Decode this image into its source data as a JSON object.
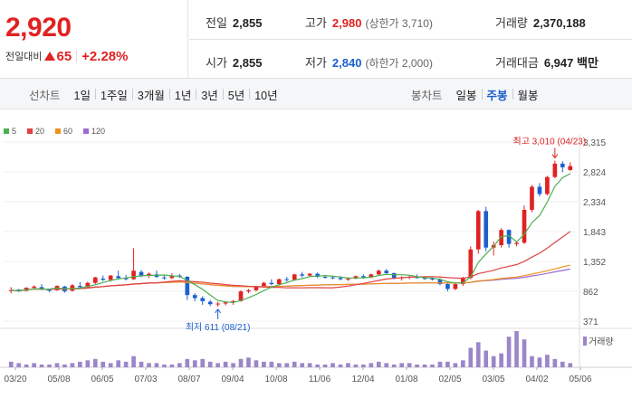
{
  "header": {
    "current_price": "2,920",
    "change_label": "전일대비",
    "change_amount": "65",
    "change_rate": "+2.28%"
  },
  "stats": {
    "prev_close": {
      "label": "전일",
      "value": "2,855"
    },
    "open": {
      "label": "시가",
      "value": "2,855"
    },
    "high": {
      "label": "고가",
      "value": "2,980",
      "sub": "(상한가 3,710)"
    },
    "low": {
      "label": "저가",
      "value": "2,840",
      "sub": "(하한가 2,000)"
    },
    "volume": {
      "label": "거래량",
      "value": "2,370,188"
    },
    "amount": {
      "label": "거래대금",
      "value": "6,947 백만"
    }
  },
  "toolbar": {
    "line_chart_title": "선차트",
    "line_periods": [
      "1일",
      "1주일",
      "3개월",
      "1년",
      "3년",
      "5년",
      "10년"
    ],
    "candle_chart_title": "봉차트",
    "candle_periods": [
      "일봉",
      "주봉",
      "월봉"
    ],
    "active_candle_period": "주봉"
  },
  "colors": {
    "up": "#e02222",
    "down": "#1c5fcf",
    "ma5": "#4caf50",
    "ma20": "#e04040",
    "ma60": "#f0901e",
    "ma120": "#9c6bd0",
    "volume": "#9a86c8"
  },
  "chart_data": {
    "type": "candlestick",
    "legend": [
      {
        "name": "5",
        "color": "#4caf50"
      },
      {
        "name": "20",
        "color": "#e04040"
      },
      {
        "name": "60",
        "color": "#f0901e"
      },
      {
        "name": "120",
        "color": "#9c6bd0"
      }
    ],
    "y_ticks": [
      3315,
      2824,
      2334,
      1843,
      1352,
      862,
      371
    ],
    "ylim": [
      371,
      3315
    ],
    "x_ticks": [
      "03/20",
      "05/08",
      "06/05",
      "07/03",
      "08/07",
      "09/04",
      "10/08",
      "11/06",
      "12/04",
      "01/08",
      "02/05",
      "03/05",
      "04/02",
      "05/06"
    ],
    "volume_label": "거래량",
    "annotations": {
      "high": "최고 3,010 (04/23)",
      "low": "최저 611 (08/21)"
    },
    "candles": [
      [
        870,
        930,
        830,
        880
      ],
      [
        890,
        900,
        850,
        860
      ],
      [
        870,
        930,
        860,
        920
      ],
      [
        920,
        960,
        890,
        940
      ],
      [
        930,
        980,
        880,
        895
      ],
      [
        895,
        905,
        850,
        870
      ],
      [
        880,
        960,
        870,
        950
      ],
      [
        940,
        950,
        840,
        860
      ],
      [
        870,
        980,
        860,
        960
      ],
      [
        950,
        1010,
        900,
        930
      ],
      [
        930,
        1020,
        920,
        1000
      ],
      [
        1000,
        1100,
        980,
        1090
      ],
      [
        1070,
        1120,
        1030,
        1050
      ],
      [
        1050,
        1130,
        1020,
        1120
      ],
      [
        1110,
        1200,
        1050,
        1080
      ],
      [
        1080,
        1130,
        1040,
        1060
      ],
      [
        1060,
        1570,
        1050,
        1200
      ],
      [
        1180,
        1210,
        1090,
        1120
      ],
      [
        1120,
        1170,
        1080,
        1150
      ],
      [
        1140,
        1200,
        1080,
        1100
      ],
      [
        1090,
        1120,
        1050,
        1080
      ],
      [
        1080,
        1160,
        1060,
        1120
      ],
      [
        1120,
        1150,
        1080,
        1100
      ],
      [
        1100,
        1110,
        720,
        800
      ],
      [
        800,
        830,
        700,
        750
      ],
      [
        750,
        780,
        640,
        700
      ],
      [
        690,
        720,
        620,
        650
      ],
      [
        650,
        690,
        611,
        660
      ],
      [
        660,
        700,
        630,
        680
      ],
      [
        680,
        720,
        640,
        700
      ],
      [
        700,
        880,
        690,
        860
      ],
      [
        860,
        900,
        830,
        880
      ],
      [
        880,
        950,
        860,
        930
      ],
      [
        930,
        1020,
        920,
        1000
      ],
      [
        1000,
        1060,
        960,
        980
      ],
      [
        980,
        1070,
        960,
        1060
      ],
      [
        1060,
        1100,
        1020,
        1050
      ],
      [
        1050,
        1150,
        1040,
        1140
      ],
      [
        1140,
        1180,
        1090,
        1120
      ],
      [
        1120,
        1160,
        1100,
        1150
      ],
      [
        1150,
        1170,
        1080,
        1100
      ],
      [
        1100,
        1130,
        1070,
        1090
      ],
      [
        1090,
        1120,
        1060,
        1080
      ],
      [
        1080,
        1110,
        1040,
        1060
      ],
      [
        1060,
        1090,
        1030,
        1070
      ],
      [
        1070,
        1120,
        1060,
        1110
      ],
      [
        1110,
        1140,
        1070,
        1090
      ],
      [
        1090,
        1150,
        1080,
        1140
      ],
      [
        1140,
        1220,
        1120,
        1200
      ],
      [
        1200,
        1230,
        1140,
        1160
      ],
      [
        1160,
        1170,
        1060,
        1080
      ],
      [
        1080,
        1110,
        1040,
        1090
      ],
      [
        1090,
        1120,
        1060,
        1100
      ],
      [
        1100,
        1140,
        1070,
        1080
      ],
      [
        1080,
        1100,
        1050,
        1070
      ],
      [
        1070,
        1090,
        1040,
        1060
      ],
      [
        1060,
        1080,
        960,
        980
      ],
      [
        980,
        1020,
        860,
        900
      ],
      [
        900,
        1000,
        880,
        980
      ],
      [
        980,
        1100,
        950,
        1080
      ],
      [
        1080,
        1600,
        1060,
        1550
      ],
      [
        1550,
        2200,
        1480,
        2180
      ],
      [
        2180,
        2250,
        1520,
        1580
      ],
      [
        1580,
        1680,
        1450,
        1620
      ],
      [
        1620,
        1900,
        1580,
        1870
      ],
      [
        1870,
        1880,
        1580,
        1640
      ],
      [
        1640,
        1680,
        1600,
        1660
      ],
      [
        1660,
        2270,
        1640,
        2200
      ],
      [
        2200,
        2610,
        2160,
        2580
      ],
      [
        2580,
        2640,
        2420,
        2460
      ],
      [
        2460,
        2760,
        2440,
        2740
      ],
      [
        2740,
        3010,
        2720,
        2960
      ],
      [
        2960,
        3000,
        2820,
        2900
      ],
      [
        2855,
        2980,
        2840,
        2920
      ]
    ],
    "volumes": [
      4,
      3,
      2,
      3,
      2,
      2,
      3,
      2,
      3,
      4,
      5,
      6,
      4,
      3,
      5,
      4,
      8,
      4,
      3,
      3,
      2,
      2,
      3,
      6,
      5,
      6,
      4,
      3,
      4,
      3,
      6,
      7,
      5,
      4,
      4,
      3,
      3,
      4,
      3,
      3,
      2,
      2,
      3,
      2,
      3,
      2,
      2,
      3,
      4,
      3,
      2,
      3,
      3,
      2,
      2,
      2,
      4,
      4,
      3,
      5,
      14,
      18,
      12,
      8,
      10,
      22,
      26,
      20,
      8,
      7,
      9,
      6,
      4,
      3
    ]
  }
}
